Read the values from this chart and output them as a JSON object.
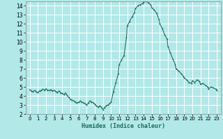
{
  "title": "",
  "xlabel": "Humidex (Indice chaleur)",
  "background_color": "#b2e8e8",
  "grid_color": "#ffffff",
  "line_color": "#1a6b5a",
  "xlim": [
    -0.5,
    23.5
  ],
  "ylim": [
    2,
    14.5
  ],
  "yticks": [
    2,
    3,
    4,
    5,
    6,
    7,
    8,
    9,
    10,
    11,
    12,
    13,
    14
  ],
  "xticks": [
    0,
    1,
    2,
    3,
    4,
    5,
    6,
    7,
    8,
    9,
    10,
    11,
    12,
    13,
    14,
    15,
    16,
    17,
    18,
    19,
    20,
    21,
    22,
    23
  ],
  "x": [
    0,
    0.2,
    0.4,
    0.6,
    0.8,
    1.0,
    1.2,
    1.4,
    1.6,
    1.8,
    2.0,
    2.2,
    2.4,
    2.6,
    2.8,
    3.0,
    3.2,
    3.4,
    3.6,
    3.8,
    4.0,
    4.2,
    4.4,
    4.6,
    4.8,
    5.0,
    5.2,
    5.4,
    5.6,
    5.8,
    6.0,
    6.2,
    6.4,
    6.6,
    6.8,
    7.0,
    7.2,
    7.4,
    7.6,
    7.8,
    8.0,
    8.2,
    8.4,
    8.6,
    8.8,
    9.0,
    9.2,
    9.4,
    9.6,
    9.8,
    10.0,
    10.3,
    10.6,
    10.9,
    11.0,
    11.3,
    11.6,
    11.9,
    12.0,
    12.3,
    12.6,
    12.9,
    13.0,
    13.3,
    13.6,
    13.9,
    14.0,
    14.3,
    14.6,
    14.9,
    15.0,
    15.3,
    15.6,
    15.9,
    16.0,
    16.3,
    16.6,
    16.9,
    17.0,
    17.3,
    17.6,
    17.9,
    18.0,
    18.3,
    18.6,
    18.9,
    19.0,
    19.3,
    19.6,
    19.9,
    20.0,
    20.3,
    20.6,
    20.9,
    21.0,
    21.3,
    21.6,
    21.9,
    22.0,
    22.3,
    22.6,
    22.9,
    23.0
  ],
  "y": [
    4.7,
    4.55,
    4.5,
    4.6,
    4.45,
    4.4,
    4.55,
    4.6,
    4.75,
    4.65,
    4.8,
    4.65,
    4.6,
    4.7,
    4.55,
    4.65,
    4.5,
    4.4,
    4.55,
    4.35,
    4.3,
    4.15,
    4.35,
    4.05,
    3.85,
    3.65,
    3.55,
    3.45,
    3.35,
    3.2,
    3.3,
    3.45,
    3.35,
    3.25,
    3.15,
    3.0,
    3.2,
    3.45,
    3.35,
    3.25,
    3.1,
    2.9,
    2.75,
    2.9,
    2.75,
    2.5,
    2.7,
    2.9,
    3.0,
    3.15,
    3.3,
    4.5,
    5.5,
    6.5,
    7.5,
    8.0,
    8.5,
    10.5,
    11.8,
    12.3,
    12.8,
    13.3,
    13.7,
    14.0,
    14.15,
    14.25,
    14.45,
    14.5,
    14.35,
    14.1,
    13.8,
    13.55,
    13.2,
    12.5,
    12.0,
    11.5,
    10.8,
    10.3,
    9.5,
    8.8,
    8.1,
    7.5,
    7.0,
    6.8,
    6.5,
    6.2,
    6.0,
    5.8,
    5.5,
    5.4,
    5.7,
    5.5,
    5.8,
    5.6,
    5.3,
    5.4,
    5.2,
    5.0,
    4.8,
    5.0,
    4.9,
    4.75,
    4.6
  ]
}
